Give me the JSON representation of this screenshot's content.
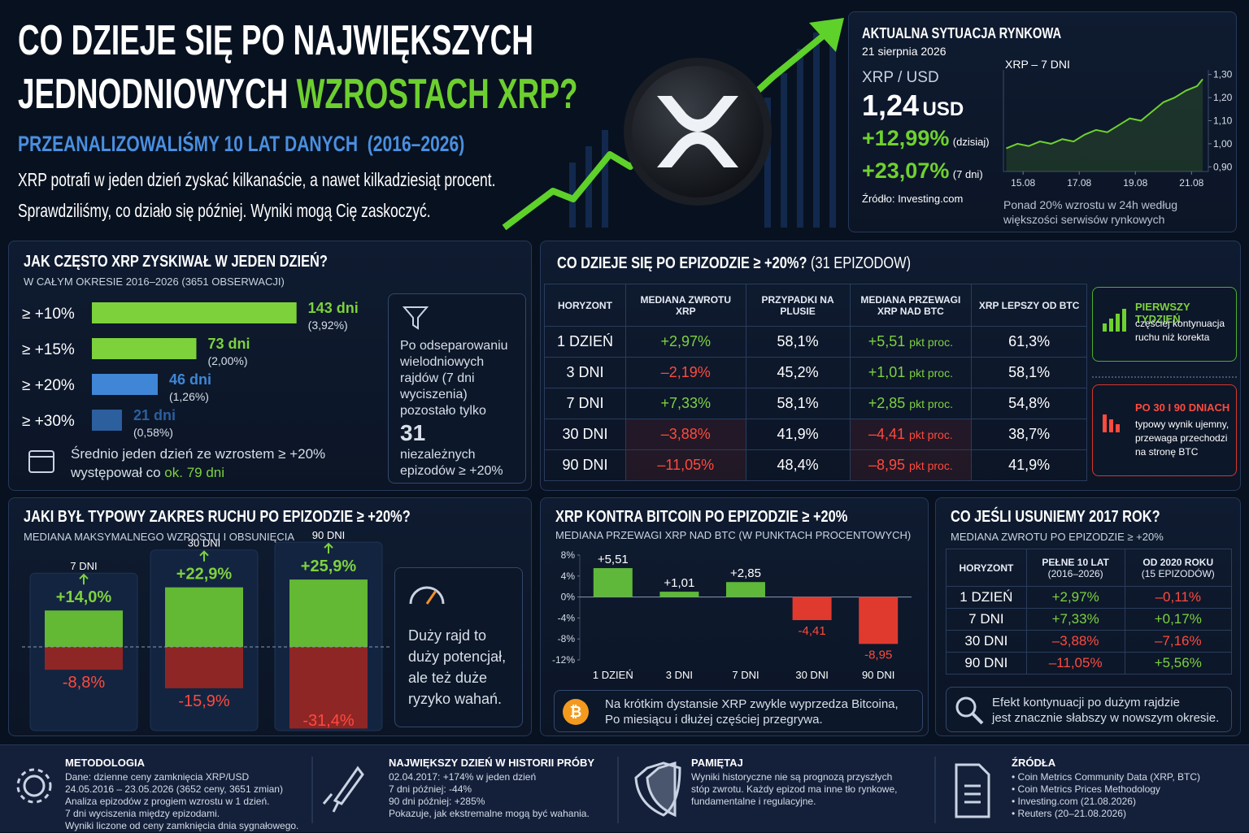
{
  "header": {
    "title_line_1": "CO DZIEJE SIĘ PO NAJWIĘKSZYCH",
    "title_line_2": "JEDNODNIOWYCH",
    "title_highlight": "WZROSTACH XRP?",
    "subtitle": "PRZEANALIZOWALIŚMY 10 LAT DANYCH  (2016–2026)",
    "intro": [
      "XRP potrafi w jeden dzień zyskać kilkanaście, a nawet kilkadziesiąt procent.",
      "Sprawdziliśmy, co działo się później. Wyniki mogą Cię zaskoczyć."
    ]
  },
  "market": {
    "heading": "AKTUALNA SYTUACJA RYNKOWA",
    "date": "21 sierpnia 2026",
    "pair": "XRP / USD",
    "price": "1,24",
    "price_unit": "USD",
    "change_1d": "+12,99%",
    "change_1d_label": "(dzisiaj)",
    "change_7d": "+23,07%",
    "change_7d_label": "(7 dni)",
    "source": "Źródło: Investing.com",
    "note": "Ponad 20% wzrostu w 24h według większości serwisów rynkowych"
  },
  "theme": {
    "positive_color": "#7ed13f",
    "negative_color": "#ff4a3d"
  },
  "chart_data": [
    {
      "type": "line",
      "title": "XRP – 7 DNI",
      "color": "#6fd12f",
      "x": [
        14.4,
        14.8,
        15.2,
        15.6,
        16,
        16.4,
        16.8,
        17.2,
        17.6,
        18,
        18.4,
        18.8,
        19.2,
        19.6,
        20,
        20.4,
        20.8,
        21.2,
        21.4
      ],
      "values": [
        0.98,
        1.0,
        0.99,
        1.01,
        1.0,
        1.02,
        1.01,
        1.04,
        1.06,
        1.05,
        1.08,
        1.11,
        1.1,
        1.14,
        1.18,
        1.2,
        1.23,
        1.25,
        1.28
      ],
      "xlim": [
        14.3,
        21.6
      ],
      "xticks": [
        {
          "value": 15,
          "label": "15.08"
        },
        {
          "value": 17,
          "label": "17.08"
        },
        {
          "value": 19,
          "label": "19.08"
        },
        {
          "value": 21,
          "label": "21.08"
        }
      ],
      "ylim": [
        0.88,
        1.32
      ],
      "yticks": [
        {
          "value": 0.9,
          "label": "0,90"
        },
        {
          "value": 1.0,
          "label": "1,00"
        },
        {
          "value": 1.1,
          "label": "1,10"
        },
        {
          "value": 1.2,
          "label": "1,20"
        },
        {
          "value": 1.3,
          "label": "1,30"
        }
      ]
    },
    {
      "type": "hbar",
      "title": "JAK CZĘSTO XRP ZYSKIWAŁ W JEDEN DZIEŃ?",
      "subtitle": "W CAŁYM OKRESIE 2016–2026 (3651 OBSERWACJI)",
      "categories": [
        "≥ +10%",
        "≥ +15%",
        "≥ +20%",
        "≥ +30%"
      ],
      "values": [
        143,
        73,
        46,
        21
      ],
      "value_labels": [
        "143 dni",
        "73 dni",
        "46 dni",
        "21 dni"
      ],
      "share_labels": [
        "(3,92%)",
        "(2,00%)",
        "(1,26%)",
        "(0,58%)"
      ],
      "colors": [
        "#7dd23c",
        "#7dd23c",
        "#3f86d6",
        "#2c5f9e"
      ]
    },
    {
      "type": "range",
      "title": "JAKI BYŁ TYPOWY ZAKRES RUCHU PO EPIZODZIE ≥ +20%?",
      "subtitle": "MEDIANA MAKSYMALNEGO WZROSTU I OBSUNIĘCIA",
      "categories": [
        "7 DNI",
        "30 DNI",
        "90 DNI"
      ],
      "series": [
        {
          "color": "#63b834",
          "values": [
            14.0,
            22.9,
            25.9
          ],
          "value_labels": [
            "+14,0%",
            "+22,9%",
            "+25,9%"
          ]
        },
        {
          "color": "#8e2626",
          "values": [
            -8.8,
            -15.9,
            -31.4
          ],
          "value_labels": [
            "-8,8%",
            "-15,9%",
            "-31,4%"
          ]
        }
      ]
    },
    {
      "type": "bar",
      "title": "XRP KONTRA BITCOIN PO EPIZODZIE ≥ +20%",
      "subtitle": "MEDIANA PRZEWAGI XRP NAD BTC (W PUNKTACH PROCENTOWYCH)",
      "categories": [
        "1 DZIEŃ",
        "3 DNI",
        "7 DNI",
        "30 DNI",
        "90 DNI"
      ],
      "values": [
        5.51,
        1.01,
        2.85,
        -4.41,
        -8.95
      ],
      "value_labels": [
        "+5,51",
        "+1,01",
        "+2,85",
        "-4,41",
        "-8,95"
      ],
      "color_positive": "#5fb83a",
      "color_negative": "#e03a2f",
      "ylim": [
        -12,
        8
      ],
      "yticks": [
        {
          "value": 8,
          "label": "8%"
        },
        {
          "value": 4,
          "label": "4%"
        },
        {
          "value": 0,
          "label": "0%"
        },
        {
          "value": -4,
          "label": "-4%"
        },
        {
          "value": -8,
          "label": "-8%"
        },
        {
          "value": -12,
          "label": "-12%"
        }
      ]
    }
  ],
  "frequency_panel": {
    "note_line_1": "Średnio jeden dzień ze wzrostem ≥ +20%",
    "note_line_2": "występował co",
    "note_highlight": "ok. 79 dni",
    "side_text": "Po odseparowaniu wielodniowych rajdów (7 dni wyciszenia) pozostało tylko",
    "side_number": 31,
    "side_text_2": "niezależnych epizodów ≥ +20%"
  },
  "episodes": {
    "title": "CO DZIEJE SIĘ PO EPIZODZIE ≥ +20%?",
    "title_suffix": "(31 EPIZODOW)",
    "headers": [
      "HORYZONT",
      "MEDIANA ZWROTU XRP",
      "PRZYPADKI NA PLUSIE",
      "MEDIANA PRZEWAGI XRP NAD BTC",
      "XRP LEPSZY OD BTC"
    ],
    "rows": [
      {
        "horizon": "1 DZIEŃ",
        "median": "+2,97%",
        "positive": "58,1%",
        "edge": "+5,51",
        "edge_unit": "pkt proc.",
        "better": "61,3%"
      },
      {
        "horizon": "3 DNI",
        "median": "–2,19%",
        "positive": "45,2%",
        "edge": "+1,01",
        "edge_unit": "pkt proc.",
        "better": "58,1%"
      },
      {
        "horizon": "7 DNI",
        "median": "+7,33%",
        "positive": "58,1%",
        "edge": "+2,85",
        "edge_unit": "pkt proc.",
        "better": "54,8%"
      },
      {
        "horizon": "30 DNI",
        "median": "–3,88%",
        "positive": "41,9%",
        "edge": "–4,41",
        "edge_unit": "pkt proc.",
        "better": "38,7%"
      },
      {
        "horizon": "90 DNI",
        "median": "–11,05%",
        "positive": "48,4%",
        "edge": "–8,95",
        "edge_unit": "pkt proc.",
        "better": "41,9%"
      }
    ],
    "callouts": [
      {
        "title": "PIERWSZY TYDZIEŃ",
        "text": "częściej kontynuacja ruchu niż korekta"
      },
      {
        "title": "PO 30 I 90 DNIACH",
        "text": "typowy wynik ujemny, przewaga przechodzi na stronę BTC"
      }
    ]
  },
  "range_panel": {
    "note": "Duży rajd to duży potencjał, ale też duże ryzyko wahań."
  },
  "vs_btc_panel": {
    "note": [
      "Na krótkim dystansie XRP zwykle wyprzedza Bitcoina,",
      "Po miesiącu i dłużej częściej przegrywa."
    ]
  },
  "no_2017": {
    "title": "CO JEŚLI USUNIEMY 2017 ROK?",
    "subtitle": "MEDIANA ZWROTU PO EPIZODZIE ≥ +20%",
    "headers": [
      [
        "HORYZONT"
      ],
      [
        "PEŁNE 10 LAT",
        "(2016–2026)"
      ],
      [
        "OD 2020 ROKU",
        "(15 EPIZODÓW)"
      ]
    ],
    "rows": [
      [
        "1 DZIEŃ",
        "+2,97%",
        "–0,11%"
      ],
      [
        "7 DNI",
        "+7,33%",
        "+0,17%"
      ],
      [
        "30 DNI",
        "–3,88%",
        "–7,16%"
      ],
      [
        "90 DNI",
        "–11,05%",
        "+5,56%"
      ]
    ],
    "note": [
      "Efekt kontynuacji po dużym rajdzie",
      "jest znacznie słabszy w nowszym okresie."
    ]
  },
  "footer": [
    {
      "title": "METODOLOGIA",
      "lines": [
        "Dane: dzienne ceny zamknięcia XRP/USD",
        "24.05.2016 – 23.05.2026 (3652 ceny, 3651 zmian)",
        "Analiza epizodów z progiem wzrostu w 1 dzień.",
        "7 dni wyciszenia między epizodami.",
        "Wyniki liczone od ceny zamknięcia dnia sygnałowego."
      ]
    },
    {
      "title": "NAJWIĘKSZY DZIEŃ W HISTORII PRÓBY",
      "lines": [
        "02.04.2017: +174% w jeden dzień",
        "7 dni później: -44%",
        "90 dni później:  +285%",
        "Pokazuje, jak ekstremalne mogą być wahania."
      ]
    },
    {
      "title": "PAMIĘTAJ",
      "lines": [
        "Wyniki historyczne nie są prognozą przyszłych",
        "stóp zwrotu. Każdy epizod ma inne tło rynkowe,",
        "fundamentalne i regulacyjne."
      ]
    },
    {
      "title": "ŹRÓDŁA",
      "lines": [
        "• Coin Metrics Community Data (XRP, BTC)",
        "• Coin Metrics Prices Methodology",
        "• Investing.com (21.08.2026)",
        "• Reuters (20–21.08.2026)"
      ]
    }
  ]
}
